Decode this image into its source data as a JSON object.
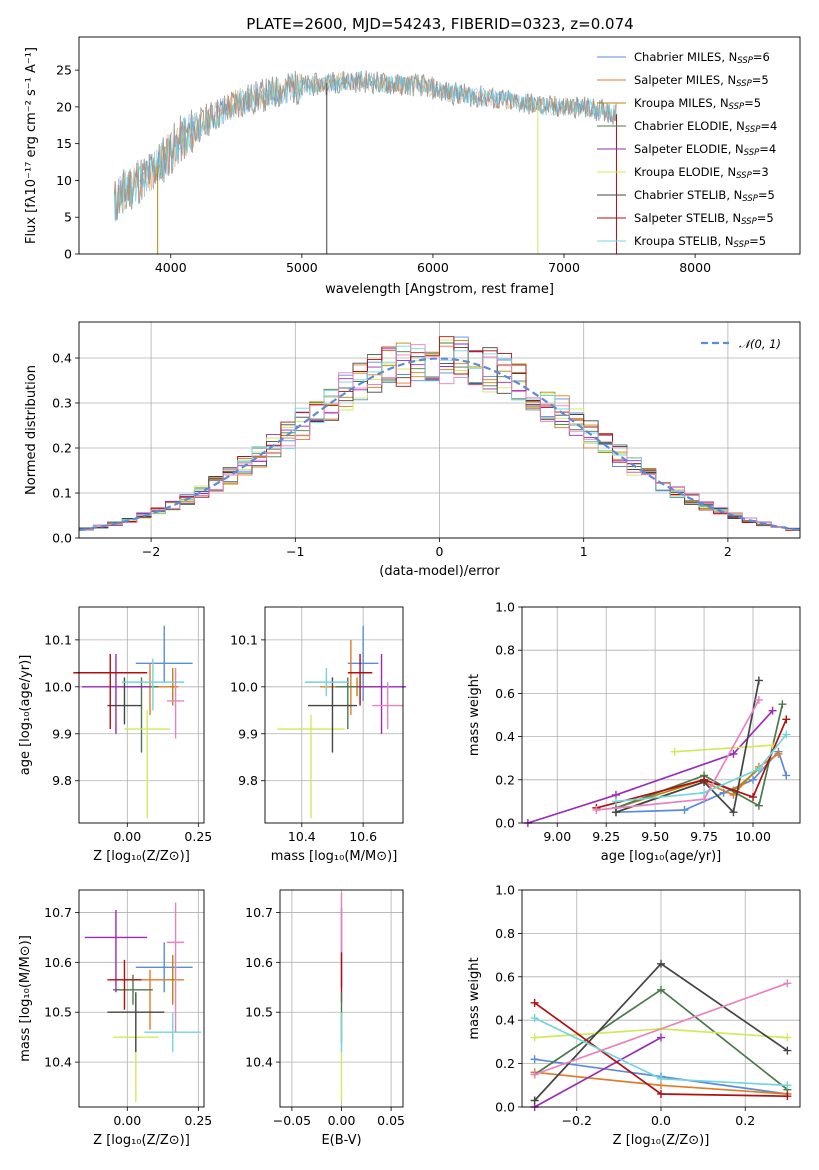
{
  "title": "PLATE=2600, MJD=54243, FIBERID=0323, z=0.074",
  "colors": {
    "Chabrier MILES": "#5b8bd9",
    "Salpeter MILES": "#e07b2a",
    "Kroupa MILES": "#b8860b",
    "Chabrier ELODIE": "#4a7a4a",
    "Salpeter ELODIE": "#9a2db8",
    "Kroupa ELODIE": "#d4e85a",
    "Chabrier STELIB": "#444444",
    "Salpeter STELIB": "#b01010",
    "Kroupa STELIB": "#70d6dc",
    "normal": "#5b8bd9",
    "pink": "#e882c0",
    "spectrum": "#777777"
  },
  "legend": [
    {
      "pre": "Chabrier MILES, N",
      "sub": "SSP",
      "post": "=6",
      "key": "Chabrier MILES"
    },
    {
      "pre": "Salpeter MILES, N",
      "sub": "SSP",
      "post": "=5",
      "key": "Salpeter MILES"
    },
    {
      "pre": "Kroupa MILES, N",
      "sub": "SSP",
      "post": "=5",
      "key": "Kroupa MILES"
    },
    {
      "pre": "Chabrier ELODIE, N",
      "sub": "SSP",
      "post": "=4",
      "key": "Chabrier ELODIE"
    },
    {
      "pre": "Salpeter ELODIE, N",
      "sub": "SSP",
      "post": "=4",
      "key": "Salpeter ELODIE"
    },
    {
      "pre": "Kroupa ELODIE, N",
      "sub": "SSP",
      "post": "=3",
      "key": "Kroupa ELODIE"
    },
    {
      "pre": "Chabrier STELIB, N",
      "sub": "SSP",
      "post": "=5",
      "key": "Chabrier STELIB"
    },
    {
      "pre": "Salpeter STELIB, N",
      "sub": "SSP",
      "post": "=5",
      "key": "Salpeter STELIB"
    },
    {
      "pre": "Kroupa STELIB, N",
      "sub": "SSP",
      "post": "=5",
      "key": "Kroupa STELIB"
    }
  ],
  "chart_data": [
    {
      "type": "line",
      "id": "spectrum",
      "xlabel": "wavelength [Angstrom, rest frame]",
      "ylabel": "Flux [fλ10⁻¹⁷ erg cm⁻² s⁻¹ A⁻¹]",
      "xlim": [
        3300,
        8800
      ],
      "ylim": [
        0,
        29.5
      ],
      "xticks": [
        "4000",
        "5000",
        "6000",
        "7000",
        "8000"
      ],
      "yticks": [
        "0",
        "5",
        "10",
        "15",
        "20",
        "25"
      ],
      "continuum": {
        "x": [
          3570,
          3650,
          3750,
          3850,
          3950,
          4050,
          4150,
          4300,
          4500,
          4700,
          4900,
          5100,
          5300,
          5500,
          5700,
          5900,
          6100,
          6300,
          6500,
          6700,
          6900,
          7100,
          7300,
          7400
        ],
        "y": [
          7,
          8.5,
          10,
          11,
          13,
          15,
          16.5,
          18.5,
          20.5,
          21.5,
          22.5,
          23,
          23.5,
          23.5,
          23,
          23,
          22,
          21.5,
          21,
          20.5,
          20,
          20,
          19.5,
          19
        ]
      },
      "spikes": [
        {
          "x": 3900,
          "y": 0,
          "series": "Kroupa MILES"
        },
        {
          "x": 5190,
          "y": 0,
          "series": "Chabrier STELIB"
        },
        {
          "x": 6800,
          "y": 0,
          "series": "Kroupa ELODIE"
        },
        {
          "x": 7400,
          "y": 0,
          "series": "Salpeter STELIB"
        }
      ]
    },
    {
      "type": "histogram",
      "id": "residuals",
      "xlabel": "(data-model)/error",
      "ylabel": "Normed distribution",
      "xlim": [
        -2.5,
        2.5
      ],
      "ylim": [
        0,
        0.48
      ],
      "xticks": [
        "−2",
        "−1",
        "0",
        "1",
        "2"
      ],
      "yticks": [
        "0.0",
        "0.1",
        "0.2",
        "0.3",
        "0.4"
      ],
      "bin_width": 0.1,
      "reference": {
        "label": "𝒩(0, 1)",
        "mean": 0,
        "sigma": 1
      }
    },
    {
      "type": "scatter",
      "id": "Z-age",
      "xlabel": "Z [log₁₀(Z/Z⊙)]",
      "ylabel": "age  [log₁₀(age/yr)]",
      "xlim": [
        -0.17,
        0.27
      ],
      "ylim": [
        9.71,
        10.17
      ],
      "xticks": [
        "0.00",
        "0.25"
      ],
      "yticks": [
        "9.8",
        "9.9",
        "10.0",
        "10.1"
      ],
      "points": [
        {
          "series": "Chabrier MILES",
          "x": 0.13,
          "y": 10.05,
          "xerr": 0.1,
          "yerr": [
            0.04,
            0.08
          ]
        },
        {
          "series": "Salpeter MILES",
          "x": 0.08,
          "y": 10.0,
          "xerr": 0.1,
          "yerr": [
            0.06,
            0.05
          ]
        },
        {
          "series": "Kroupa MILES",
          "x": 0.16,
          "y": 10.0,
          "xerr": 0.01,
          "yerr": [
            0.04,
            0.04
          ]
        },
        {
          "series": "Chabrier ELODIE",
          "x": 0.05,
          "y": 10.0,
          "xerr": 0.06,
          "yerr": [
            0.14,
            0.02
          ]
        },
        {
          "series": "Salpeter ELODIE",
          "x": -0.04,
          "y": 10.0,
          "xerr": 0.12,
          "yerr": [
            0.1,
            0.07
          ]
        },
        {
          "series": "Kroupa ELODIE",
          "x": 0.07,
          "y": 9.91,
          "xerr": 0.08,
          "yerr": [
            0.19,
            0.04
          ]
        },
        {
          "series": "Chabrier STELIB",
          "x": -0.01,
          "y": 9.96,
          "xerr": 0.06,
          "yerr": [
            0.04,
            0.06
          ]
        },
        {
          "series": "Salpeter STELIB",
          "x": -0.06,
          "y": 10.03,
          "xerr": 0.13,
          "yerr": [
            0.12,
            0.04
          ]
        },
        {
          "series": "Kroupa STELIB",
          "x": 0.09,
          "y": 10.01,
          "xerr": 0.11,
          "yerr": [
            0.06,
            0.05
          ]
        },
        {
          "series": "pink",
          "x": 0.17,
          "y": 9.97,
          "xerr": 0.03,
          "yerr": [
            0.08,
            0.07
          ]
        }
      ]
    },
    {
      "type": "scatter",
      "id": "mass-age",
      "xlabel": "mass [log₁₀(M/M⊙)]",
      "ylabel": "",
      "xlim": [
        0.28,
        0.73
      ],
      "ylim": [
        9.71,
        10.17
      ],
      "xticks": [
        "10.4",
        "10.6"
      ],
      "yticks": [
        "9.8",
        "9.9",
        "10.0",
        "10.1"
      ],
      "xtick_values": [
        0.4,
        0.6
      ],
      "points": [
        {
          "series": "Chabrier MILES",
          "x": 0.6,
          "y": 10.05,
          "xerr": 0.05,
          "yerr": [
            0.08,
            0.08
          ]
        },
        {
          "series": "Salpeter MILES",
          "x": 0.56,
          "y": 10.0,
          "xerr": 0.1,
          "yerr": [
            0.06,
            0.1
          ]
        },
        {
          "series": "Kroupa MILES",
          "x": 0.58,
          "y": 10.0,
          "xerr": 0.02,
          "yerr": [
            0.02,
            0.02
          ]
        },
        {
          "series": "Chabrier ELODIE",
          "x": 0.55,
          "y": 10.0,
          "xerr": 0.04,
          "yerr": [
            0.09,
            0.02
          ]
        },
        {
          "series": "Salpeter ELODIE",
          "x": 0.66,
          "y": 10.0,
          "xerr": 0.08,
          "yerr": [
            0.1,
            0.07
          ]
        },
        {
          "series": "Kroupa ELODIE",
          "x": 0.43,
          "y": 9.91,
          "xerr": 0.11,
          "yerr": [
            0.19,
            0.03
          ]
        },
        {
          "series": "Chabrier STELIB",
          "x": 0.5,
          "y": 9.96,
          "xerr": 0.08,
          "yerr": [
            0.1,
            0.06
          ]
        },
        {
          "series": "Salpeter STELIB",
          "x": 0.59,
          "y": 10.03,
          "xerr": 0.04,
          "yerr": [
            0.07,
            0.04
          ]
        },
        {
          "series": "Kroupa STELIB",
          "x": 0.48,
          "y": 10.01,
          "xerr": 0.07,
          "yerr": [
            0.03,
            0.03
          ]
        },
        {
          "series": "pink",
          "x": 0.68,
          "y": 9.96,
          "xerr": 0.05,
          "yerr": [
            0.05,
            0.05
          ]
        }
      ]
    },
    {
      "type": "line",
      "id": "age-weight",
      "xlabel": "age  [log₁₀(age/yr)]",
      "ylabel": "mass weight",
      "xlim": [
        8.82,
        10.24
      ],
      "ylim": [
        0,
        1.0
      ],
      "xticks": [
        "9.00",
        "9.25",
        "9.50",
        "9.75",
        "10.00"
      ],
      "yticks": [
        "0.0",
        "0.2",
        "0.4",
        "0.6",
        "0.8",
        "1.0"
      ],
      "series": [
        {
          "name": "Chabrier MILES",
          "x": [
            9.3,
            9.65,
            9.85,
            10.0,
            10.13,
            10.17
          ],
          "y": [
            0.05,
            0.06,
            0.14,
            0.2,
            0.33,
            0.22
          ]
        },
        {
          "name": "Salpeter MILES",
          "x": [
            9.3,
            9.75,
            9.9,
            10.03,
            10.13
          ],
          "y": [
            0.05,
            0.19,
            0.13,
            0.26,
            0.32
          ]
        },
        {
          "name": "Kroupa MILES",
          "x": [
            9.3,
            9.75,
            9.9,
            10.03
          ],
          "y": [
            0.07,
            0.2,
            0.15,
            0.25
          ]
        },
        {
          "name": "Chabrier ELODIE",
          "x": [
            9.3,
            9.75,
            10.03,
            10.15
          ],
          "y": [
            0.07,
            0.22,
            0.08,
            0.55
          ]
        },
        {
          "name": "Salpeter ELODIE",
          "x": [
            8.85,
            9.3,
            9.9,
            10.1
          ],
          "y": [
            0.0,
            0.13,
            0.32,
            0.52
          ]
        },
        {
          "name": "Kroupa ELODIE",
          "x": [
            9.6,
            10.1
          ],
          "y": [
            0.33,
            0.36
          ]
        },
        {
          "name": "Chabrier STELIB",
          "x": [
            9.3,
            9.75,
            9.9,
            10.03
          ],
          "y": [
            0.05,
            0.19,
            0.05,
            0.66
          ]
        },
        {
          "name": "Salpeter STELIB",
          "x": [
            9.2,
            9.75,
            10.0,
            10.17
          ],
          "y": [
            0.07,
            0.2,
            0.12,
            0.48
          ]
        },
        {
          "name": "Kroupa STELIB",
          "x": [
            9.3,
            9.75,
            10.03,
            10.17
          ],
          "y": [
            0.1,
            0.14,
            0.25,
            0.41
          ]
        },
        {
          "name": "pink",
          "x": [
            9.2,
            9.75,
            10.03
          ],
          "y": [
            0.06,
            0.11,
            0.57
          ]
        }
      ]
    },
    {
      "type": "scatter",
      "id": "Z-mass",
      "xlabel": "Z [log₁₀(Z/Z⊙)]",
      "ylabel": "mass [log₁₀(M/M⊙)]",
      "xlim": [
        -0.17,
        0.27
      ],
      "ylim": [
        10.31,
        10.745
      ],
      "xticks": [
        "0.00",
        "0.25"
      ],
      "yticks": [
        "10.4",
        "10.5",
        "10.6",
        "10.7"
      ],
      "points": [
        {
          "series": "Chabrier MILES",
          "x": 0.13,
          "y": 10.59,
          "xerr": 0.1,
          "yerr": [
            0.05,
            0.05
          ]
        },
        {
          "series": "Salpeter MILES",
          "x": 0.08,
          "y": 10.565,
          "xerr": 0.12,
          "yerr": [
            0.1,
            0.02
          ]
        },
        {
          "series": "Kroupa MILES",
          "x": 0.16,
          "y": 10.565,
          "xerr": 0.01,
          "yerr": [
            0.05,
            0.05
          ]
        },
        {
          "series": "Chabrier ELODIE",
          "x": 0.02,
          "y": 10.545,
          "xerr": 0.07,
          "yerr": [
            0.03,
            0.03
          ]
        },
        {
          "series": "Salpeter ELODIE",
          "x": -0.04,
          "y": 10.65,
          "xerr": 0.11,
          "yerr": [
            0.11,
            0.055
          ]
        },
        {
          "series": "Kroupa ELODIE",
          "x": 0.03,
          "y": 10.45,
          "xerr": 0.08,
          "yerr": [
            0.13,
            0.04
          ]
        },
        {
          "series": "Chabrier STELIB",
          "x": 0.03,
          "y": 10.5,
          "xerr": 0.1,
          "yerr": [
            0.08,
            0.04
          ]
        },
        {
          "series": "Salpeter STELIB",
          "x": -0.01,
          "y": 10.565,
          "xerr": 0.06,
          "yerr": [
            0.06,
            0.04
          ]
        },
        {
          "series": "Kroupa STELIB",
          "x": 0.16,
          "y": 10.46,
          "xerr": 0.1,
          "yerr": [
            0.04,
            0.04
          ]
        },
        {
          "series": "pink",
          "x": 0.17,
          "y": 10.64,
          "xerr": 0.03,
          "yerr": [
            0.18,
            0.08
          ]
        }
      ]
    },
    {
      "type": "scatter",
      "id": "ebv-mass",
      "xlabel": "E(B-V)",
      "ylabel": "",
      "xlim": [
        -0.062,
        0.062
      ],
      "ylim": [
        10.31,
        10.745
      ],
      "xticks": [
        "−0.05",
        "0.00",
        "0.05"
      ],
      "yticks": [
        "10.4",
        "10.5",
        "10.6",
        "10.7"
      ],
      "points": [
        {
          "series": "Kroupa ELODIE",
          "x": 0.0,
          "y": 10.45,
          "xerr": 0.0,
          "yerr": [
            0.13,
            0.05
          ]
        },
        {
          "series": "Salpeter ELODIE",
          "x": 0.0,
          "y": 10.65,
          "xerr": 0.0,
          "yerr": [
            0.1,
            0.06
          ]
        },
        {
          "series": "pink",
          "x": 0.0,
          "y": 10.66,
          "xerr": 0.0,
          "yerr": [
            0.04,
            0.08
          ]
        },
        {
          "series": "Salpeter STELIB",
          "x": 0.0,
          "y": 10.57,
          "xerr": 0.0,
          "yerr": [
            0.05,
            0.05
          ]
        },
        {
          "series": "Chabrier ELODIE",
          "x": 0.0,
          "y": 10.5,
          "xerr": 0.0,
          "yerr": [
            0.06,
            0.04
          ]
        },
        {
          "series": "Kroupa STELIB",
          "x": 0.0,
          "y": 10.46,
          "xerr": 0.0,
          "yerr": [
            0.04,
            0.04
          ]
        }
      ]
    },
    {
      "type": "line",
      "id": "Z-weight",
      "xlabel": "Z [log₁₀(Z/Z⊙)]",
      "ylabel": "mass weight",
      "xlim": [
        -0.33,
        0.33
      ],
      "ylim": [
        0,
        1.0
      ],
      "xticks": [
        "−0.2",
        "0.0",
        "0.2"
      ],
      "yticks": [
        "0.0",
        "0.2",
        "0.4",
        "0.6",
        "0.8",
        "1.0"
      ],
      "xtick_values": [
        -0.2,
        0.0,
        0.2
      ],
      "series": [
        {
          "name": "Chabrier MILES",
          "x": [
            -0.3,
            0.0,
            0.3
          ],
          "y": [
            0.22,
            0.14,
            0.06
          ]
        },
        {
          "name": "Salpeter MILES",
          "x": [
            -0.3,
            0.0,
            0.3
          ],
          "y": [
            0.16,
            0.1,
            0.06
          ]
        },
        {
          "name": "Chabrier ELODIE",
          "x": [
            -0.3,
            0.0,
            0.3
          ],
          "y": [
            0.15,
            0.54,
            0.08
          ]
        },
        {
          "name": "Salpeter ELODIE",
          "x": [
            -0.3,
            0.0
          ],
          "y": [
            0.0,
            0.32
          ]
        },
        {
          "name": "Kroupa ELODIE",
          "x": [
            -0.3,
            0.0,
            0.3
          ],
          "y": [
            0.32,
            0.36,
            0.32
          ]
        },
        {
          "name": "Chabrier STELIB",
          "x": [
            -0.3,
            0.0,
            0.3
          ],
          "y": [
            0.03,
            0.66,
            0.26
          ]
        },
        {
          "name": "Salpeter STELIB",
          "x": [
            -0.3,
            0.0,
            0.3
          ],
          "y": [
            0.48,
            0.06,
            0.05
          ]
        },
        {
          "name": "Kroupa STELIB",
          "x": [
            -0.3,
            0.0,
            0.3
          ],
          "y": [
            0.41,
            0.13,
            0.1
          ]
        },
        {
          "name": "pink",
          "x": [
            -0.3,
            0.3
          ],
          "y": [
            0.15,
            0.57
          ]
        }
      ]
    }
  ]
}
